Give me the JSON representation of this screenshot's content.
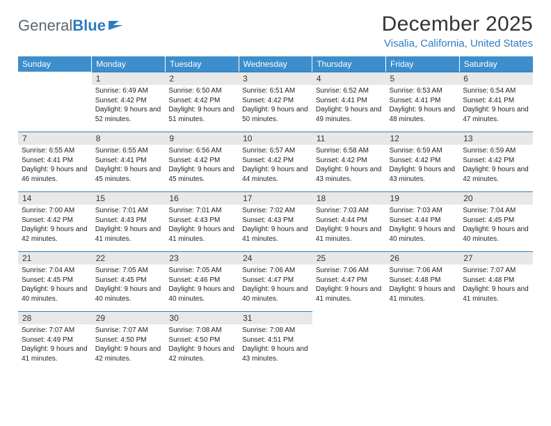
{
  "logo": {
    "text1": "General",
    "text2": "Blue"
  },
  "title": "December 2025",
  "location": "Visalia, California, United States",
  "colors": {
    "header_bg": "#3c8ecc",
    "accent": "#2d7cc0",
    "daynum_bg": "#e8e8e8",
    "text": "#333333",
    "body_text": "#222222",
    "logo_gray": "#5a6670"
  },
  "days_of_week": [
    "Sunday",
    "Monday",
    "Tuesday",
    "Wednesday",
    "Thursday",
    "Friday",
    "Saturday"
  ],
  "weeks": [
    [
      null,
      {
        "n": "1",
        "sr": "6:49 AM",
        "ss": "4:42 PM",
        "dl": "9 hours and 52 minutes."
      },
      {
        "n": "2",
        "sr": "6:50 AM",
        "ss": "4:42 PM",
        "dl": "9 hours and 51 minutes."
      },
      {
        "n": "3",
        "sr": "6:51 AM",
        "ss": "4:42 PM",
        "dl": "9 hours and 50 minutes."
      },
      {
        "n": "4",
        "sr": "6:52 AM",
        "ss": "4:41 PM",
        "dl": "9 hours and 49 minutes."
      },
      {
        "n": "5",
        "sr": "6:53 AM",
        "ss": "4:41 PM",
        "dl": "9 hours and 48 minutes."
      },
      {
        "n": "6",
        "sr": "6:54 AM",
        "ss": "4:41 PM",
        "dl": "9 hours and 47 minutes."
      }
    ],
    [
      {
        "n": "7",
        "sr": "6:55 AM",
        "ss": "4:41 PM",
        "dl": "9 hours and 46 minutes."
      },
      {
        "n": "8",
        "sr": "6:55 AM",
        "ss": "4:41 PM",
        "dl": "9 hours and 45 minutes."
      },
      {
        "n": "9",
        "sr": "6:56 AM",
        "ss": "4:42 PM",
        "dl": "9 hours and 45 minutes."
      },
      {
        "n": "10",
        "sr": "6:57 AM",
        "ss": "4:42 PM",
        "dl": "9 hours and 44 minutes."
      },
      {
        "n": "11",
        "sr": "6:58 AM",
        "ss": "4:42 PM",
        "dl": "9 hours and 43 minutes."
      },
      {
        "n": "12",
        "sr": "6:59 AM",
        "ss": "4:42 PM",
        "dl": "9 hours and 43 minutes."
      },
      {
        "n": "13",
        "sr": "6:59 AM",
        "ss": "4:42 PM",
        "dl": "9 hours and 42 minutes."
      }
    ],
    [
      {
        "n": "14",
        "sr": "7:00 AM",
        "ss": "4:42 PM",
        "dl": "9 hours and 42 minutes."
      },
      {
        "n": "15",
        "sr": "7:01 AM",
        "ss": "4:43 PM",
        "dl": "9 hours and 41 minutes."
      },
      {
        "n": "16",
        "sr": "7:01 AM",
        "ss": "4:43 PM",
        "dl": "9 hours and 41 minutes."
      },
      {
        "n": "17",
        "sr": "7:02 AM",
        "ss": "4:43 PM",
        "dl": "9 hours and 41 minutes."
      },
      {
        "n": "18",
        "sr": "7:03 AM",
        "ss": "4:44 PM",
        "dl": "9 hours and 41 minutes."
      },
      {
        "n": "19",
        "sr": "7:03 AM",
        "ss": "4:44 PM",
        "dl": "9 hours and 40 minutes."
      },
      {
        "n": "20",
        "sr": "7:04 AM",
        "ss": "4:45 PM",
        "dl": "9 hours and 40 minutes."
      }
    ],
    [
      {
        "n": "21",
        "sr": "7:04 AM",
        "ss": "4:45 PM",
        "dl": "9 hours and 40 minutes."
      },
      {
        "n": "22",
        "sr": "7:05 AM",
        "ss": "4:45 PM",
        "dl": "9 hours and 40 minutes."
      },
      {
        "n": "23",
        "sr": "7:05 AM",
        "ss": "4:46 PM",
        "dl": "9 hours and 40 minutes."
      },
      {
        "n": "24",
        "sr": "7:06 AM",
        "ss": "4:47 PM",
        "dl": "9 hours and 40 minutes."
      },
      {
        "n": "25",
        "sr": "7:06 AM",
        "ss": "4:47 PM",
        "dl": "9 hours and 41 minutes."
      },
      {
        "n": "26",
        "sr": "7:06 AM",
        "ss": "4:48 PM",
        "dl": "9 hours and 41 minutes."
      },
      {
        "n": "27",
        "sr": "7:07 AM",
        "ss": "4:48 PM",
        "dl": "9 hours and 41 minutes."
      }
    ],
    [
      {
        "n": "28",
        "sr": "7:07 AM",
        "ss": "4:49 PM",
        "dl": "9 hours and 41 minutes."
      },
      {
        "n": "29",
        "sr": "7:07 AM",
        "ss": "4:50 PM",
        "dl": "9 hours and 42 minutes."
      },
      {
        "n": "30",
        "sr": "7:08 AM",
        "ss": "4:50 PM",
        "dl": "9 hours and 42 minutes."
      },
      {
        "n": "31",
        "sr": "7:08 AM",
        "ss": "4:51 PM",
        "dl": "9 hours and 43 minutes."
      },
      null,
      null,
      null
    ]
  ],
  "labels": {
    "sunrise": "Sunrise:",
    "sunset": "Sunset:",
    "daylight": "Daylight:"
  }
}
